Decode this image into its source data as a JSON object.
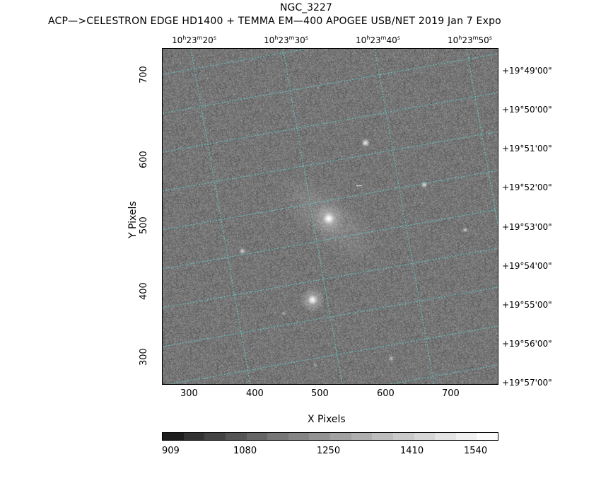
{
  "header": {
    "object_name": "NGC_3227",
    "info_line": "ACP—>CELESTRON EDGE HD1400 + TEMMA EM—400 APOGEE USB/NET   2019 Jan  7    Expo"
  },
  "x_axis": {
    "title": "X Pixels",
    "ticks": [
      "300",
      "400",
      "500",
      "600",
      "700"
    ]
  },
  "y_axis": {
    "title": "Y Pixels",
    "ticks": [
      "300",
      "400",
      "500",
      "600",
      "700"
    ]
  },
  "ra_labels": [
    "10h23m20s",
    "10h23m30s",
    "10h23m40s",
    "10h23m50s"
  ],
  "dec_labels": [
    "+19°49'00\"",
    "+19°50'00\"",
    "+19°51'00\"",
    "+19°52'00\"",
    "+19°53'00\"",
    "+19°54'00\"",
    "+19°55'00\"",
    "+19°56'00\"",
    "+19°57'00\""
  ],
  "colorbar": {
    "labels": [
      "909",
      "1080",
      "1250",
      "1410",
      "1540"
    ],
    "colors": [
      "#1e1e1e",
      "#333333",
      "#444444",
      "#555555",
      "#666666",
      "#777777",
      "#858585",
      "#939393",
      "#a1a1a1",
      "#afafaf",
      "#bdbdbd",
      "#cacaca",
      "#d7d7d7",
      "#e4e4e4",
      "#f0f0f0",
      "#fbfbfb"
    ]
  },
  "colors": {
    "grid": "#5fd3d3",
    "sky": "#8a8a8a"
  }
}
